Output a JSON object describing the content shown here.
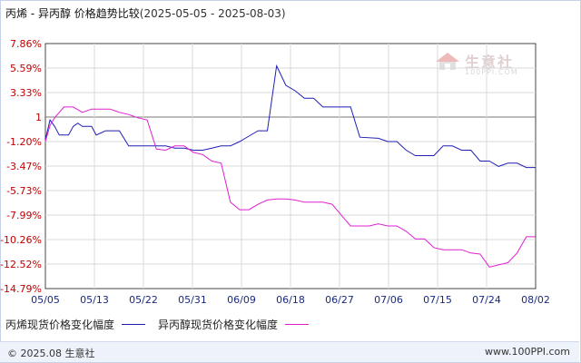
{
  "title": {
    "main": "丙烯 - 异丙醇 价格趋势比较",
    "range": "(2025-05-05 - 2025-08-03)"
  },
  "watermark": {
    "brand": "生意社",
    "site": "100PPI.COM",
    "logo_icon": "house-logo-icon"
  },
  "colors": {
    "series1": "#1f1fb4",
    "series2": "#e020d0",
    "grid": "#d8d8d8",
    "axis": "#444444",
    "baseline": "#777777"
  },
  "chart_data": {
    "type": "line",
    "x": [
      "05/05",
      "05/13",
      "05/22",
      "05/31",
      "06/09",
      "06/18",
      "06/27",
      "07/06",
      "07/15",
      "07/24",
      "08/02"
    ],
    "y_ticks": [
      "7.86%",
      "5.59%",
      "3.33%",
      "1",
      "-1.20%",
      "-3.47%",
      "-5.73%",
      "-7.99%",
      "-10.26%",
      "-12.52%",
      "-14.79%"
    ],
    "ylim": [
      -14.79,
      7.86
    ],
    "grid": true,
    "legend_position": "bottom",
    "series": [
      {
        "name": "丙烯现货价格变化幅度",
        "points": [
          [
            0,
            -1.0
          ],
          [
            0.5,
            0.8
          ],
          [
            1,
            0.2
          ],
          [
            1.5,
            -0.6
          ],
          [
            2.5,
            -0.6
          ],
          [
            3,
            0.2
          ],
          [
            3.5,
            0.5
          ],
          [
            4,
            0.2
          ],
          [
            5,
            0.2
          ],
          [
            5.5,
            -0.6
          ],
          [
            6,
            -0.4
          ],
          [
            6.5,
            -0.2
          ],
          [
            8,
            -0.2
          ],
          [
            9,
            -1.6
          ],
          [
            10,
            -1.6
          ],
          [
            11,
            -1.6
          ],
          [
            12,
            -1.6
          ],
          [
            13,
            -1.6
          ],
          [
            14,
            -1.8
          ],
          [
            15,
            -1.8
          ],
          [
            16,
            -2.0
          ],
          [
            17,
            -2.0
          ],
          [
            18,
            -1.8
          ],
          [
            19,
            -1.6
          ],
          [
            20,
            -1.6
          ],
          [
            21,
            -1.2
          ],
          [
            22,
            -0.7
          ],
          [
            23,
            -0.2
          ],
          [
            24,
            -0.2
          ],
          [
            25,
            5.8
          ],
          [
            26,
            4.0
          ],
          [
            27,
            3.5
          ],
          [
            28,
            2.8
          ],
          [
            29,
            2.8
          ],
          [
            30,
            2.0
          ],
          [
            31,
            2.0
          ],
          [
            32,
            2.0
          ],
          [
            33,
            2.0
          ],
          [
            34,
            -0.8
          ],
          [
            36,
            -0.9
          ],
          [
            37,
            -1.2
          ],
          [
            38,
            -1.2
          ],
          [
            39,
            -2.0
          ],
          [
            40,
            -2.5
          ],
          [
            41,
            -2.5
          ],
          [
            42,
            -2.5
          ],
          [
            43,
            -1.6
          ],
          [
            44,
            -1.6
          ],
          [
            45,
            -2.0
          ],
          [
            46,
            -2.0
          ],
          [
            47,
            -3.0
          ],
          [
            48,
            -3.0
          ],
          [
            49,
            -3.5
          ],
          [
            50,
            -3.2
          ],
          [
            51,
            -3.2
          ],
          [
            52,
            -3.6
          ],
          [
            53,
            -3.6
          ]
        ]
      },
      {
        "name": "异丙醇现货价格变化幅度",
        "points": [
          [
            0,
            -1.2
          ],
          [
            0.5,
            0.3
          ],
          [
            1,
            1.0
          ],
          [
            1.5,
            1.5
          ],
          [
            2,
            2.0
          ],
          [
            3,
            2.0
          ],
          [
            4,
            1.5
          ],
          [
            5,
            1.8
          ],
          [
            6,
            1.8
          ],
          [
            7,
            1.8
          ],
          [
            8,
            1.5
          ],
          [
            9,
            1.3
          ],
          [
            10,
            1.0
          ],
          [
            11,
            0.8
          ],
          [
            12,
            -1.9
          ],
          [
            13,
            -2.0
          ],
          [
            14,
            -1.6
          ],
          [
            15,
            -1.6
          ],
          [
            16,
            -2.2
          ],
          [
            17,
            -2.4
          ],
          [
            18,
            -3.0
          ],
          [
            19,
            -3.2
          ],
          [
            20,
            -6.8
          ],
          [
            21,
            -7.5
          ],
          [
            22,
            -7.5
          ],
          [
            23,
            -7.0
          ],
          [
            24,
            -6.6
          ],
          [
            25,
            -6.5
          ],
          [
            26,
            -6.5
          ],
          [
            27,
            -6.6
          ],
          [
            28,
            -6.8
          ],
          [
            29,
            -6.8
          ],
          [
            30,
            -6.8
          ],
          [
            31,
            -7.0
          ],
          [
            32,
            -8.0
          ],
          [
            33,
            -9.0
          ],
          [
            34,
            -9.0
          ],
          [
            35,
            -9.0
          ],
          [
            36,
            -8.8
          ],
          [
            37,
            -9.0
          ],
          [
            38,
            -9.0
          ],
          [
            39,
            -9.5
          ],
          [
            40,
            -10.2
          ],
          [
            41,
            -10.2
          ],
          [
            42,
            -11.0
          ],
          [
            43,
            -11.2
          ],
          [
            44,
            -11.2
          ],
          [
            45,
            -11.2
          ],
          [
            46,
            -11.5
          ],
          [
            47,
            -11.6
          ],
          [
            48,
            -12.8
          ],
          [
            49,
            -12.6
          ],
          [
            50,
            -12.4
          ],
          [
            51,
            -11.5
          ],
          [
            52,
            -10.0
          ],
          [
            53,
            -10.0
          ]
        ]
      }
    ]
  },
  "footer": {
    "copyright": "© 2025.08 生意社",
    "site": "www.100PPI.com"
  }
}
